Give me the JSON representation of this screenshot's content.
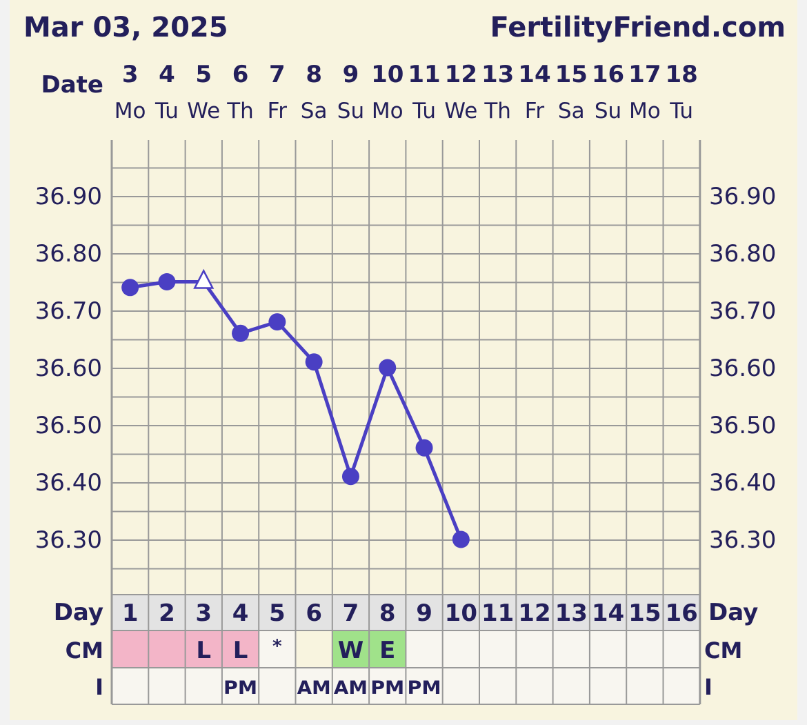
{
  "header": {
    "chart_date": "Mar 03, 2025",
    "site_name": "FertilityFriend.com"
  },
  "colors": {
    "background": "#f8f4df",
    "outer_background": "#f2f2f2",
    "grid_line": "#999999",
    "text": "#231f5b",
    "temp_line": "#4a3fc3",
    "menses": "#f3b5c8",
    "fertile_cm": "#a0e28a",
    "day_row": "#e3e3e3",
    "empty_cell": "#f8f6f0"
  },
  "chart_data": {
    "type": "line",
    "row_labels": {
      "date": "Date",
      "day": "Day",
      "cm": "CM",
      "intercourse": "I"
    },
    "dates": [
      "3",
      "4",
      "5",
      "6",
      "7",
      "8",
      "9",
      "10",
      "11",
      "12",
      "13",
      "14",
      "15",
      "16",
      "17",
      "18"
    ],
    "weekdays": [
      "Mo",
      "Tu",
      "We",
      "Th",
      "Fr",
      "Sa",
      "Su",
      "Mo",
      "Tu",
      "We",
      "Th",
      "Fr",
      "Sa",
      "Su",
      "Mo",
      "Tu"
    ],
    "cycle_days": [
      "1",
      "2",
      "3",
      "4",
      "5",
      "6",
      "7",
      "8",
      "9",
      "10",
      "11",
      "12",
      "13",
      "14",
      "15",
      "16"
    ],
    "y_tick_labels": [
      "36.90",
      "36.80",
      "36.70",
      "36.60",
      "36.50",
      "36.40",
      "36.30"
    ],
    "ylim": [
      36.22,
      36.98
    ],
    "grid": true,
    "temperatures": [
      {
        "day": 1,
        "value": 36.74,
        "marker": "circle"
      },
      {
        "day": 2,
        "value": 36.75,
        "marker": "circle"
      },
      {
        "day": 3,
        "value": 36.75,
        "marker": "open-triangle"
      },
      {
        "day": 4,
        "value": 36.66,
        "marker": "circle"
      },
      {
        "day": 5,
        "value": 36.68,
        "marker": "circle"
      },
      {
        "day": 6,
        "value": 36.61,
        "marker": "circle"
      },
      {
        "day": 7,
        "value": 36.41,
        "marker": "circle"
      },
      {
        "day": 8,
        "value": 36.6,
        "marker": "circle"
      },
      {
        "day": 9,
        "value": 36.46,
        "marker": "circle"
      },
      {
        "day": 10,
        "value": 36.3,
        "marker": "circle"
      }
    ],
    "cm_row": [
      {
        "text": "",
        "fill": "menses"
      },
      {
        "text": "",
        "fill": "menses"
      },
      {
        "text": "L",
        "fill": "menses"
      },
      {
        "text": "L",
        "fill": "menses"
      },
      {
        "text": "*",
        "fill": "none"
      },
      {
        "text": "",
        "fill": "background"
      },
      {
        "text": "W",
        "fill": "fertile_cm"
      },
      {
        "text": "E",
        "fill": "fertile_cm"
      },
      {
        "text": "",
        "fill": "none"
      },
      {
        "text": "",
        "fill": "none"
      },
      {
        "text": "",
        "fill": "none"
      },
      {
        "text": "",
        "fill": "none"
      },
      {
        "text": "",
        "fill": "none"
      },
      {
        "text": "",
        "fill": "none"
      },
      {
        "text": "",
        "fill": "none"
      },
      {
        "text": "",
        "fill": "none"
      }
    ],
    "intercourse_row": [
      "",
      "",
      "",
      "PM",
      "",
      "AM",
      "AM",
      "PM",
      "PM",
      "",
      "",
      "",
      "",
      "",
      "",
      ""
    ]
  }
}
